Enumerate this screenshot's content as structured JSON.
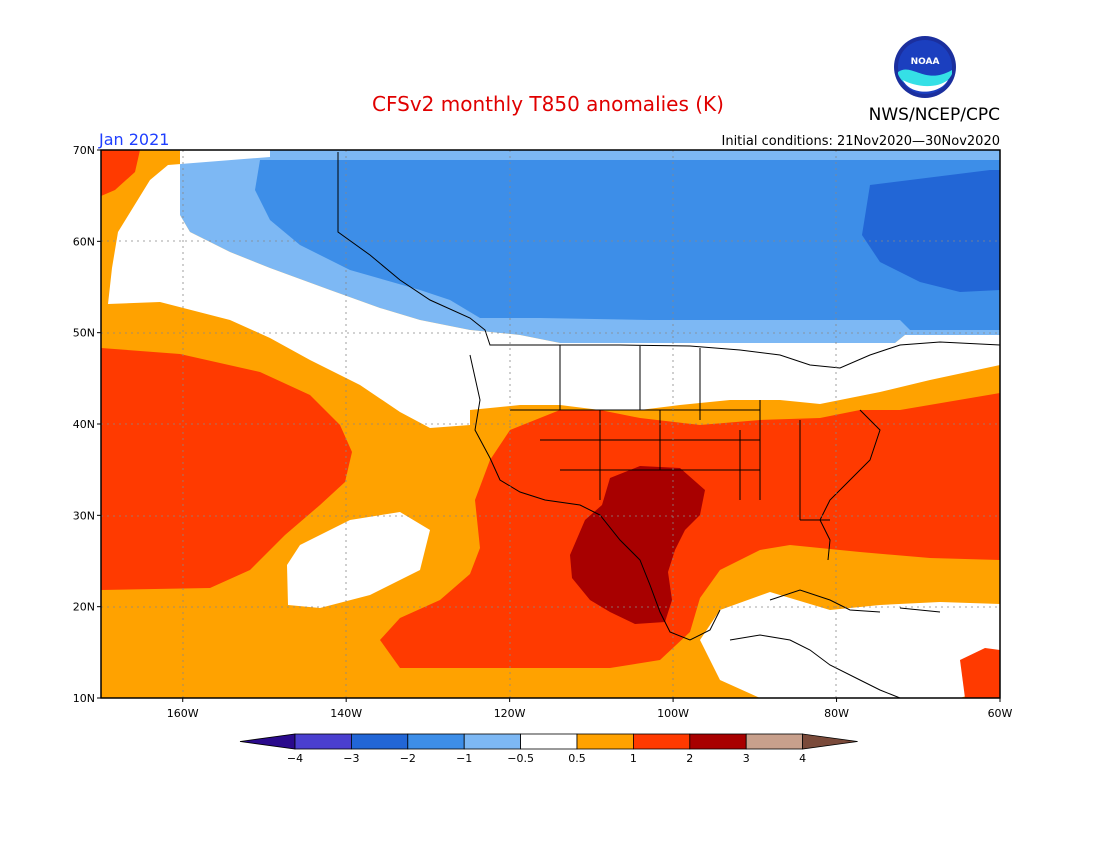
{
  "title": "CFSv2 monthly T850 anomalies (K)",
  "agency": "NWS/NCEP/CPC",
  "logo_text": "NOAA",
  "valid_month": "Jan 2021",
  "initial_conditions": "Initial conditions: 21Nov2020—30Nov2020",
  "map": {
    "lon_range": [
      -170,
      -60
    ],
    "lat_range": [
      10,
      70
    ],
    "lat_labels": [
      {
        "lat": 70,
        "text": "70N"
      },
      {
        "lat": 60,
        "text": "60N"
      },
      {
        "lat": 50,
        "text": "50N"
      },
      {
        "lat": 40,
        "text": "40N"
      },
      {
        "lat": 30,
        "text": "30N"
      },
      {
        "lat": 20,
        "text": "20N"
      },
      {
        "lat": 10,
        "text": "10N"
      }
    ],
    "lon_labels": [
      {
        "lon": -160,
        "text": "160W"
      },
      {
        "lon": -140,
        "text": "140W"
      },
      {
        "lon": -120,
        "text": "120W"
      },
      {
        "lon": -100,
        "text": "100W"
      },
      {
        "lon": -80,
        "text": "80W"
      },
      {
        "lon": -60,
        "text": "60W"
      }
    ]
  },
  "colorbar": {
    "colors": [
      "#2a0a8c",
      "#4a3fcf",
      "#2266d6",
      "#3d8ee8",
      "#7db8f4",
      "#ffffff",
      "#ffa200",
      "#ff3a00",
      "#a80000",
      "#c8a08c",
      "#7a4a3a"
    ],
    "labels": [
      "−4",
      "−3",
      "−2",
      "−1",
      "−0.5",
      "0.5",
      "1",
      "2",
      "3",
      "4"
    ]
  },
  "colors": {
    "title": "#e00000",
    "month": "#1f3fff",
    "anom_pos_05": "#ffa200",
    "anom_pos_1": "#ff3a00",
    "anom_pos_2": "#a80000",
    "anom_neg_05": "#7db8f4",
    "anom_neg_1": "#3d8ee8",
    "anom_neg_2": "#2266d6"
  }
}
